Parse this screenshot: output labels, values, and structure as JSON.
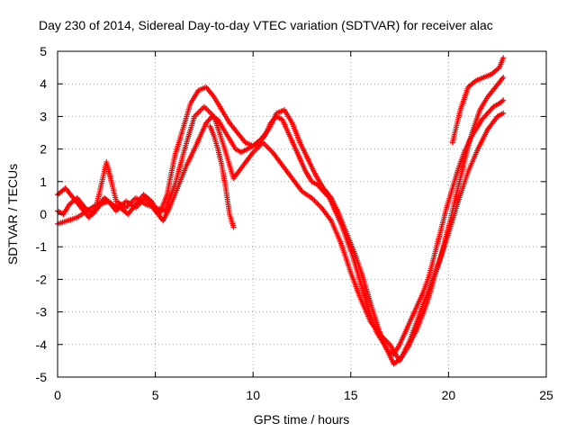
{
  "chart_data": {
    "type": "scatter",
    "title": "Day 230 of 2014, Sidereal Day-to-day VTEC variation (SDTVAR) for receiver alac",
    "xlabel": "GPS time / hours",
    "ylabel": "SDTVAR / TECUs",
    "xlim": [
      0,
      25
    ],
    "ylim": [
      -5,
      5
    ],
    "xticks": [
      "0",
      "5",
      "10",
      "15",
      "20",
      "25"
    ],
    "yticks": [
      "-5",
      "-4",
      "-3",
      "-2",
      "-1",
      "0",
      "1",
      "2",
      "3",
      "4",
      "5"
    ],
    "grid": true,
    "marker": "plus",
    "color": "#ff0000",
    "series": [
      {
        "x": [
          0.0,
          0.3,
          0.6,
          1.0,
          1.4,
          1.8,
          2.2,
          2.6,
          3.0,
          3.5,
          4.0,
          4.5,
          5.0,
          5.4,
          5.8,
          6.2,
          6.6,
          7.0,
          7.3,
          7.6,
          7.9,
          8.2,
          8.5,
          8.8,
          9.1,
          9.4,
          9.7,
          10.0,
          10.3,
          10.6,
          10.9,
          11.2,
          11.5,
          11.8,
          12.1,
          12.4,
          12.7,
          13.0,
          13.3,
          13.6,
          13.9,
          14.2,
          14.5,
          14.8,
          15.1,
          15.4,
          15.7,
          16.0,
          16.3,
          16.6,
          16.9,
          17.2,
          17.5,
          17.8,
          18.1,
          18.4,
          18.7,
          19.0,
          19.3,
          19.6,
          19.9,
          20.2,
          20.5,
          20.8,
          21.1,
          21.4,
          21.7,
          22.0,
          22.3,
          22.6,
          22.8
        ],
        "y": [
          0.1,
          0.0,
          0.3,
          0.5,
          0.2,
          0.0,
          0.3,
          0.4,
          0.1,
          0.4,
          0.2,
          0.5,
          0.1,
          -0.2,
          0.3,
          0.9,
          1.5,
          2.0,
          2.4,
          2.8,
          3.0,
          2.9,
          2.6,
          2.3,
          2.0,
          1.9,
          2.0,
          2.1,
          2.2,
          2.4,
          2.8,
          3.0,
          2.9,
          2.5,
          2.1,
          1.7,
          1.3,
          1.0,
          0.9,
          0.7,
          0.5,
          0.1,
          -0.3,
          -0.8,
          -1.3,
          -1.9,
          -2.5,
          -3.1,
          -3.6,
          -3.9,
          -4.2,
          -4.3,
          -4.0,
          -3.6,
          -3.2,
          -2.8,
          -2.4,
          -1.9,
          -1.2,
          -0.5,
          0.2,
          0.8,
          1.4,
          1.9,
          2.3,
          2.6,
          2.9,
          3.1,
          3.3,
          3.4,
          3.5
        ]
      },
      {
        "x": [
          0.0,
          0.4,
          0.8,
          1.2,
          1.6,
          2.0,
          2.4,
          2.8,
          3.2,
          3.6,
          4.0,
          4.4,
          4.8,
          5.2,
          5.6,
          6.0,
          6.4,
          6.8,
          7.2,
          7.6,
          8.0,
          8.4,
          8.8,
          9.2,
          9.6,
          10.0,
          10.4,
          10.8,
          11.2,
          11.6,
          12.0,
          12.4,
          12.8,
          13.2,
          13.6,
          14.0,
          14.4,
          14.8,
          15.2,
          15.6,
          16.0,
          16.4,
          16.8,
          17.2,
          17.6,
          18.0,
          18.4,
          18.8,
          19.2,
          19.6,
          20.0,
          20.4,
          20.8,
          21.2,
          21.6,
          22.0,
          22.4,
          22.8
        ],
        "y": [
          0.6,
          0.8,
          0.5,
          0.2,
          -0.1,
          0.2,
          0.5,
          0.3,
          0.2,
          0.0,
          0.3,
          0.6,
          0.4,
          0.0,
          0.6,
          1.8,
          2.6,
          3.4,
          3.8,
          3.9,
          3.6,
          3.2,
          2.8,
          2.5,
          2.2,
          2.1,
          2.3,
          2.6,
          3.1,
          3.2,
          2.8,
          2.2,
          1.7,
          1.2,
          0.8,
          0.5,
          0.0,
          -0.6,
          -1.2,
          -1.9,
          -2.7,
          -3.5,
          -4.1,
          -4.6,
          -4.4,
          -4.0,
          -3.5,
          -2.9,
          -2.1,
          -1.3,
          -0.4,
          0.6,
          1.6,
          2.5,
          3.2,
          3.6,
          3.9,
          4.2
        ]
      },
      {
        "x": [
          0.0,
          0.5,
          1.0,
          1.5,
          2.0,
          2.5,
          3.0,
          3.5,
          4.0,
          4.5,
          5.0,
          5.5,
          6.0,
          6.5,
          7.0,
          7.5,
          8.0,
          8.5,
          9.0,
          9.5,
          10.0,
          10.5,
          11.0,
          11.5,
          12.0,
          12.5,
          13.0,
          13.5,
          14.0,
          14.5,
          15.0,
          15.5,
          16.0,
          16.5,
          17.0,
          17.5,
          18.0,
          18.5,
          19.0,
          19.5,
          20.0,
          20.5,
          21.0,
          21.5,
          22.0,
          22.5,
          22.8
        ],
        "y": [
          -0.3,
          -0.2,
          -0.1,
          0.1,
          0.3,
          1.6,
          0.4,
          0.2,
          0.5,
          0.3,
          0.2,
          0.1,
          0.9,
          2.0,
          3.0,
          3.3,
          3.0,
          2.1,
          1.1,
          1.5,
          1.9,
          2.2,
          1.9,
          1.5,
          1.1,
          0.7,
          0.5,
          0.2,
          -0.2,
          -0.9,
          -1.8,
          -2.6,
          -3.3,
          -3.7,
          -4.0,
          -4.5,
          -3.9,
          -3.1,
          -2.3,
          -1.5,
          -0.6,
          0.4,
          1.3,
          2.0,
          2.6,
          3.0,
          3.1
        ]
      },
      {
        "x": [
          7.8,
          8.0,
          8.2,
          8.4,
          8.6,
          8.8,
          9.0
        ],
        "y": [
          2.7,
          2.4,
          2.0,
          1.5,
          0.8,
          0.0,
          -0.4
        ]
      },
      {
        "x": [
          20.2,
          20.6,
          21.0,
          21.4,
          21.8,
          22.2,
          22.6,
          22.8
        ],
        "y": [
          2.2,
          3.2,
          3.9,
          4.1,
          4.2,
          4.3,
          4.5,
          4.8
        ]
      }
    ]
  }
}
